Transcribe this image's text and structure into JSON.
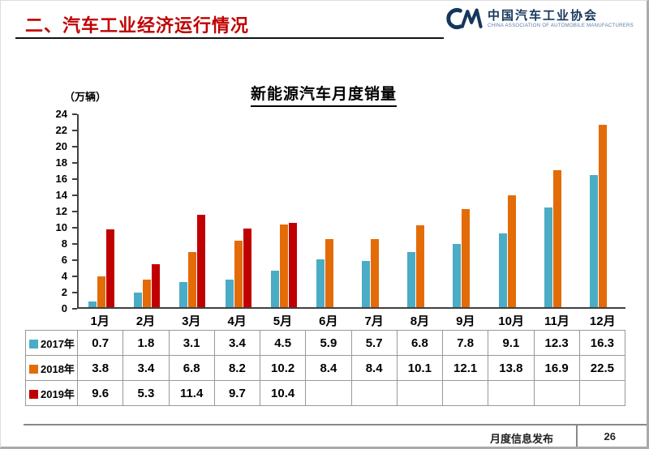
{
  "header": {
    "title": "二、汽车工业经济运行情况",
    "logo_cn": "中国汽车工业协会",
    "logo_en": "CHINA ASSOCIATION OF AUTOMOBILE MANUFACTURERS"
  },
  "chart_data": {
    "type": "bar",
    "title": "新能源汽车月度销量",
    "unit_label": "（万辆）",
    "categories": [
      "1月",
      "2月",
      "3月",
      "4月",
      "5月",
      "6月",
      "7月",
      "8月",
      "9月",
      "10月",
      "11月",
      "12月"
    ],
    "series": [
      {
        "name": "2017年",
        "color": "#4bacc6",
        "values": [
          0.7,
          1.8,
          3.1,
          3.4,
          4.5,
          5.9,
          5.7,
          6.8,
          7.8,
          9.1,
          12.3,
          16.3
        ]
      },
      {
        "name": "2018年",
        "color": "#e36c09",
        "values": [
          3.8,
          3.4,
          6.8,
          8.2,
          10.2,
          8.4,
          8.4,
          10.1,
          12.1,
          13.8,
          16.9,
          22.5
        ]
      },
      {
        "name": "2019年",
        "color": "#c00000",
        "values": [
          9.6,
          5.3,
          11.4,
          9.7,
          10.4,
          null,
          null,
          null,
          null,
          null,
          null,
          null
        ]
      }
    ],
    "ylim": [
      0,
      24
    ],
    "ytick_step": 2,
    "grid": false,
    "legend_position": "table-left"
  },
  "footer": {
    "label": "月度信息发布",
    "page": "26"
  },
  "colors": {
    "title_red": "#c00000",
    "logo_navy": "#16365c",
    "axis": "#404040"
  }
}
